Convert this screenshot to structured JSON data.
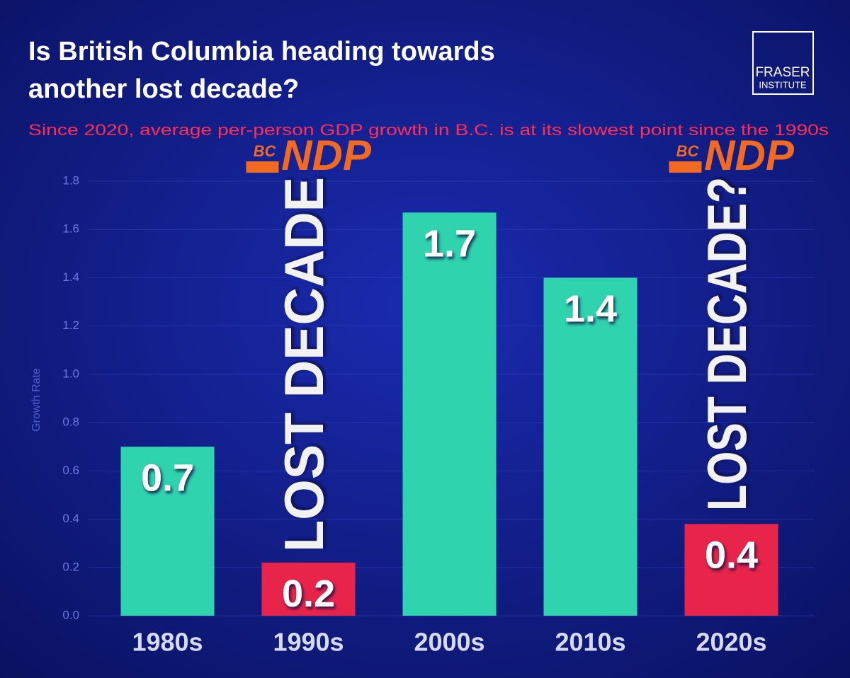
{
  "chart_data": {
    "type": "bar",
    "title": "Is British Columbia heading towards another lost decade?",
    "title_lines": [
      "Is British Columbia heading towards",
      "another lost decade?"
    ],
    "subtitle": "Since 2020, average per-person GDP growth in B.C. is at its slowest point since the 1990s",
    "logo": [
      "FRASER",
      "INSTITUTE"
    ],
    "y_label": "Growth Rate",
    "categories": [
      "1980s",
      "1990s",
      "2000s",
      "2010s",
      "2020s"
    ],
    "values": [
      0.7,
      0.22,
      1.67,
      1.4,
      0.38
    ],
    "value_labels": [
      "0.7",
      "0.2",
      "1.7",
      "1.4",
      "0.4"
    ],
    "colors": [
      "#2fd3ae",
      "#e8244a",
      "#2fd3ae",
      "#2fd3ae",
      "#e8244a"
    ],
    "annotations": [
      "LOST DECADE",
      "LOST DECADE?"
    ],
    "party_logo": {
      "prefix": "BC",
      "name": "NDP"
    },
    "ylim": [
      0,
      1.8
    ],
    "yticks": [
      {
        "value": 0,
        "label": "0.0"
      },
      0.2,
      0.4,
      0.6,
      0.8,
      {
        "value": 1,
        "label": "1.0"
      },
      1.2,
      1.4,
      1.6,
      1.8
    ],
    "grid": true
  }
}
